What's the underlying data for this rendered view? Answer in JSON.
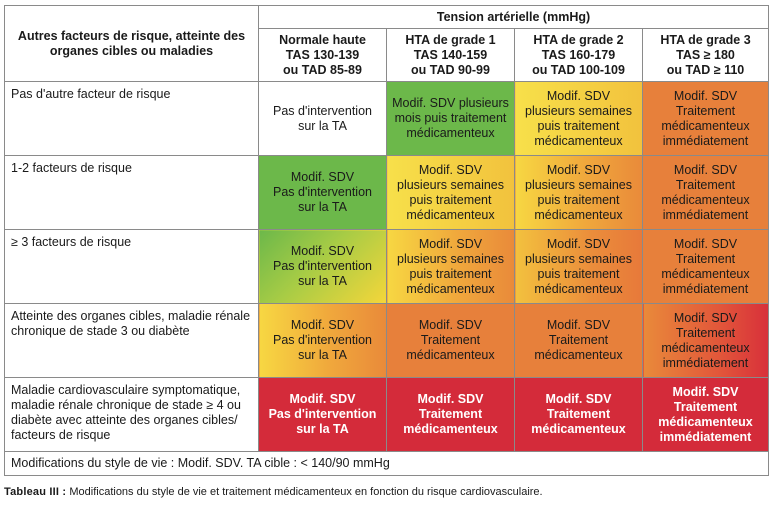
{
  "table": {
    "corner_header": "Autres facteurs de risque, atteinte des organes cibles ou maladies",
    "group_header": "Tension artérielle (mmHg)",
    "columns": [
      {
        "l1": "Normale haute",
        "l2": "TAS 130-139",
        "l3": "ou TAD 85-89"
      },
      {
        "l1": "HTA de grade 1",
        "l2": "TAS 140-159",
        "l3": "ou TAD 90-99"
      },
      {
        "l1": "HTA de grade 2",
        "l2": "TAS 160-179",
        "l3": "ou TAD 100-109"
      },
      {
        "l1": "HTA de grade 3",
        "l2": "TAS ≥ 180",
        "l3": "ou TAD ≥ 110"
      }
    ],
    "rows": [
      {
        "label": "Pas d'autre facteur de risque",
        "cells": [
          {
            "lines": [
              "Pas d'intervention",
              "sur la TA"
            ]
          },
          {
            "lines": [
              "Modif. SDV plusieurs",
              "mois puis traitement",
              "médicamenteux"
            ]
          },
          {
            "lines": [
              "Modif. SDV",
              "plusieurs semaines",
              "puis traitement",
              "médicamenteux"
            ]
          },
          {
            "lines": [
              "Modif. SDV",
              "Traitement",
              "médicamenteux",
              "immédiatement"
            ]
          }
        ]
      },
      {
        "label": "1-2 facteurs de risque",
        "cells": [
          {
            "lines": [
              "Modif. SDV",
              "Pas d'intervention",
              "sur la TA"
            ]
          },
          {
            "lines": [
              "Modif. SDV",
              "plusieurs semaines",
              "puis traitement",
              "médicamenteux"
            ]
          },
          {
            "lines": [
              "Modif. SDV",
              "plusieurs semaines",
              "puis traitement",
              "médicamenteux"
            ]
          },
          {
            "lines": [
              "Modif. SDV",
              "Traitement",
              "médicamenteux",
              "immédiatement"
            ]
          }
        ]
      },
      {
        "label": "≥ 3 facteurs de risque",
        "cells": [
          {
            "lines": [
              "Modif. SDV",
              "Pas d'intervention",
              "sur la TA"
            ]
          },
          {
            "lines": [
              "Modif. SDV",
              "plusieurs semaines",
              "puis traitement",
              "médicamenteux"
            ]
          },
          {
            "lines": [
              "Modif. SDV",
              "plusieurs semaines",
              "puis traitement",
              "médicamenteux"
            ]
          },
          {
            "lines": [
              "Modif. SDV",
              "Traitement",
              "médicamenteux",
              "immédiatement"
            ]
          }
        ]
      },
      {
        "label": "Atteinte des organes cibles, maladie rénale chronique de stade 3 ou diabète",
        "cells": [
          {
            "lines": [
              "Modif. SDV",
              "Pas d'intervention",
              "sur la TA"
            ]
          },
          {
            "lines": [
              "Modif. SDV",
              "Traitement",
              "médicamenteux"
            ]
          },
          {
            "lines": [
              "Modif. SDV",
              "Traitement",
              "médicamenteux"
            ]
          },
          {
            "lines": [
              "Modif. SDV",
              "Traitement",
              "médicamenteux",
              "immédiatement"
            ]
          }
        ]
      },
      {
        "label": "Maladie cardiovasculaire symptomatique, maladie rénale chronique de stade ≥ 4 ou diabète avec atteinte des organes cibles/ facteurs de risque",
        "cells": [
          {
            "lines": [
              "Modif. SDV",
              "Pas d'intervention",
              "sur la TA"
            ]
          },
          {
            "lines": [
              "Modif. SDV",
              "Traitement",
              "médicamenteux"
            ]
          },
          {
            "lines": [
              "Modif. SDV",
              "Traitement",
              "médicamenteux"
            ]
          },
          {
            "lines": [
              "Modif. SDV",
              "Traitement",
              "médicamenteux",
              "immédiatement"
            ]
          }
        ]
      }
    ],
    "footer": "Modifications du style de vie : Modif. SDV. TA cible : < 140/90 mmHg"
  },
  "caption": {
    "label": "Tableau III :",
    "text": " Modifications du style de vie et traitement médicamenteux en fonction du risque cardiovasculaire."
  },
  "colors": {
    "green": "#6cb84a",
    "yellow": "#f5d63a",
    "orange": "#e7803b",
    "red": "#d42b3a"
  }
}
